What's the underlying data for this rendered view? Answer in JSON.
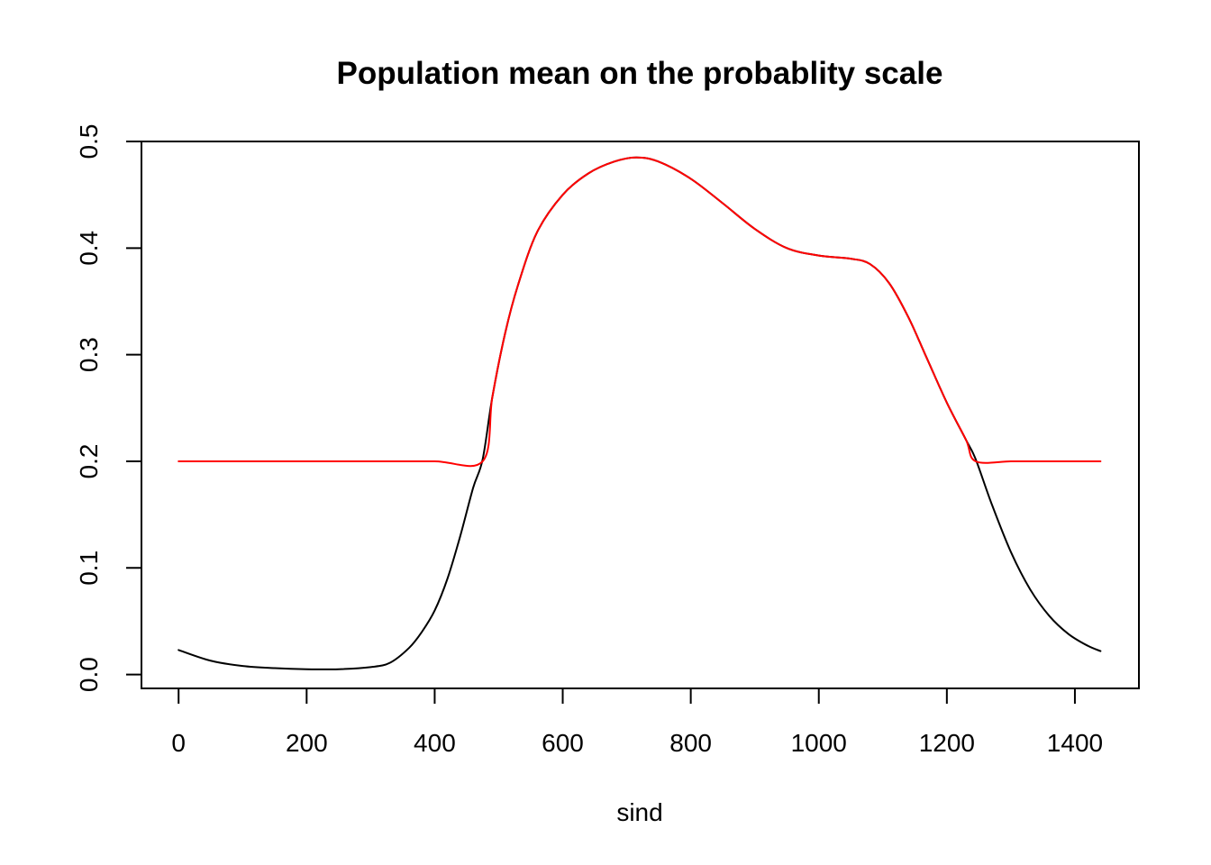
{
  "chart_data": {
    "type": "line",
    "title": "Population mean on the probablity scale",
    "xlabel": "sind",
    "ylabel": "",
    "xlim": [
      -58,
      1500
    ],
    "ylim": [
      -0.013,
      0.5
    ],
    "x_ticks": [
      0,
      200,
      400,
      600,
      800,
      1000,
      1200,
      1400
    ],
    "y_ticks": [
      0.0,
      0.1,
      0.2,
      0.3,
      0.4,
      0.5
    ],
    "x_tick_labels": [
      "0",
      "200",
      "400",
      "600",
      "800",
      "1000",
      "1200",
      "1400"
    ],
    "y_tick_labels": [
      "0.0",
      "0.1",
      "0.2",
      "0.3",
      "0.4",
      "0.5"
    ],
    "grid": false,
    "legend": "none",
    "series": [
      {
        "color": "#000000",
        "x": [
          0,
          50,
          100,
          150,
          200,
          250,
          300,
          330,
          360,
          380,
          400,
          420,
          440,
          460,
          475,
          490,
          510,
          530,
          560,
          600,
          640,
          680,
          715,
          750,
          800,
          850,
          900,
          950,
          1000,
          1050,
          1080,
          1110,
          1140,
          1170,
          1200,
          1230,
          1245,
          1270,
          1300,
          1330,
          1360,
          1390,
          1420,
          1440
        ],
        "y": [
          0.023,
          0.013,
          0.008,
          0.006,
          0.005,
          0.005,
          0.007,
          0.011,
          0.025,
          0.04,
          0.06,
          0.09,
          0.13,
          0.175,
          0.202,
          0.26,
          0.32,
          0.365,
          0.415,
          0.45,
          0.47,
          0.481,
          0.485,
          0.481,
          0.465,
          0.442,
          0.418,
          0.4,
          0.393,
          0.39,
          0.385,
          0.367,
          0.335,
          0.295,
          0.255,
          0.22,
          0.202,
          0.16,
          0.115,
          0.08,
          0.055,
          0.038,
          0.027,
          0.022
        ]
      },
      {
        "color": "#ff0000",
        "x": [
          0,
          100,
          200,
          300,
          400,
          475,
          490,
          510,
          530,
          560,
          600,
          640,
          680,
          715,
          750,
          800,
          850,
          900,
          950,
          1000,
          1050,
          1080,
          1110,
          1140,
          1170,
          1200,
          1230,
          1245,
          1300,
          1350,
          1400,
          1440
        ],
        "y": [
          0.2,
          0.2,
          0.2,
          0.2,
          0.2,
          0.2,
          0.26,
          0.32,
          0.365,
          0.415,
          0.45,
          0.47,
          0.481,
          0.485,
          0.481,
          0.465,
          0.442,
          0.418,
          0.4,
          0.393,
          0.39,
          0.385,
          0.367,
          0.335,
          0.295,
          0.255,
          0.22,
          0.2,
          0.2,
          0.2,
          0.2,
          0.2
        ]
      }
    ]
  }
}
